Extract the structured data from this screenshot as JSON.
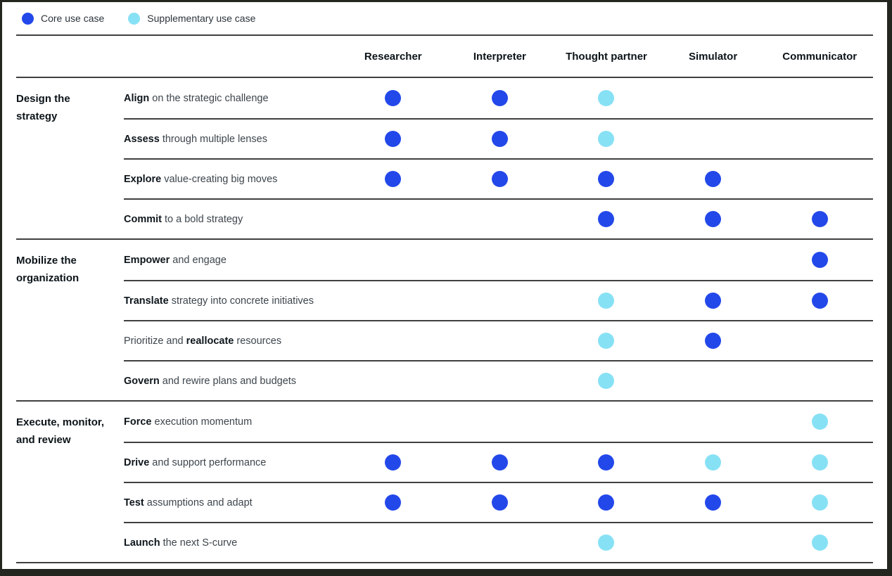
{
  "chart_data": {
    "type": "table",
    "legend": [
      {
        "label": "Core use case",
        "value": "core",
        "color": "#2348ea"
      },
      {
        "label": "Supplementary use case",
        "value": "supp",
        "color": "#87e1f5"
      }
    ],
    "columns": [
      "Researcher",
      "Interpreter",
      "Thought partner",
      "Simulator",
      "Communicator"
    ],
    "row_groups": [
      {
        "label": "Design the strategy",
        "rows": [
          {
            "segments": [
              {
                "text": "Align",
                "bold": true
              },
              {
                "text": " on the strategic challenge",
                "bold": false
              }
            ],
            "cells": [
              "core",
              "core",
              "supp",
              null,
              null
            ]
          },
          {
            "segments": [
              {
                "text": "Assess",
                "bold": true
              },
              {
                "text": " through multiple lenses",
                "bold": false
              }
            ],
            "cells": [
              "core",
              "core",
              "supp",
              null,
              null
            ]
          },
          {
            "segments": [
              {
                "text": "Explore",
                "bold": true
              },
              {
                "text": " value-creating big moves",
                "bold": false
              }
            ],
            "cells": [
              "core",
              "core",
              "core",
              "core",
              null
            ]
          },
          {
            "segments": [
              {
                "text": "Commit",
                "bold": true
              },
              {
                "text": " to a bold strategy",
                "bold": false
              }
            ],
            "cells": [
              null,
              null,
              "core",
              "core",
              "core"
            ]
          }
        ]
      },
      {
        "label": "Mobilize the organization",
        "rows": [
          {
            "segments": [
              {
                "text": "Empower",
                "bold": true
              },
              {
                "text": " and engage",
                "bold": false
              }
            ],
            "cells": [
              null,
              null,
              null,
              null,
              "core"
            ]
          },
          {
            "segments": [
              {
                "text": "Translate",
                "bold": true
              },
              {
                "text": " strategy into concrete initiatives",
                "bold": false
              }
            ],
            "cells": [
              null,
              null,
              "supp",
              "core",
              "core"
            ]
          },
          {
            "segments": [
              {
                "text": "Prioritize and ",
                "bold": false
              },
              {
                "text": "reallocate",
                "bold": true
              },
              {
                "text": " resources",
                "bold": false
              }
            ],
            "cells": [
              null,
              null,
              "supp",
              "core",
              null
            ]
          },
          {
            "segments": [
              {
                "text": "Govern",
                "bold": true
              },
              {
                "text": " and rewire plans and budgets",
                "bold": false
              }
            ],
            "cells": [
              null,
              null,
              "supp",
              null,
              null
            ]
          }
        ]
      },
      {
        "label": "Execute, monitor, and review",
        "rows": [
          {
            "segments": [
              {
                "text": "Force",
                "bold": true
              },
              {
                "text": " execution momentum",
                "bold": false
              }
            ],
            "cells": [
              null,
              null,
              null,
              null,
              "supp"
            ]
          },
          {
            "segments": [
              {
                "text": "Drive",
                "bold": true
              },
              {
                "text": " and support performance",
                "bold": false
              }
            ],
            "cells": [
              "core",
              "core",
              "core",
              "supp",
              "supp"
            ]
          },
          {
            "segments": [
              {
                "text": "Test",
                "bold": true
              },
              {
                "text": " assumptions and adapt",
                "bold": false
              }
            ],
            "cells": [
              "core",
              "core",
              "core",
              "core",
              "supp"
            ]
          },
          {
            "segments": [
              {
                "text": "Launch",
                "bold": true
              },
              {
                "text": " the next S-curve",
                "bold": false
              }
            ],
            "cells": [
              null,
              null,
              "supp",
              null,
              "supp"
            ]
          }
        ]
      }
    ]
  }
}
